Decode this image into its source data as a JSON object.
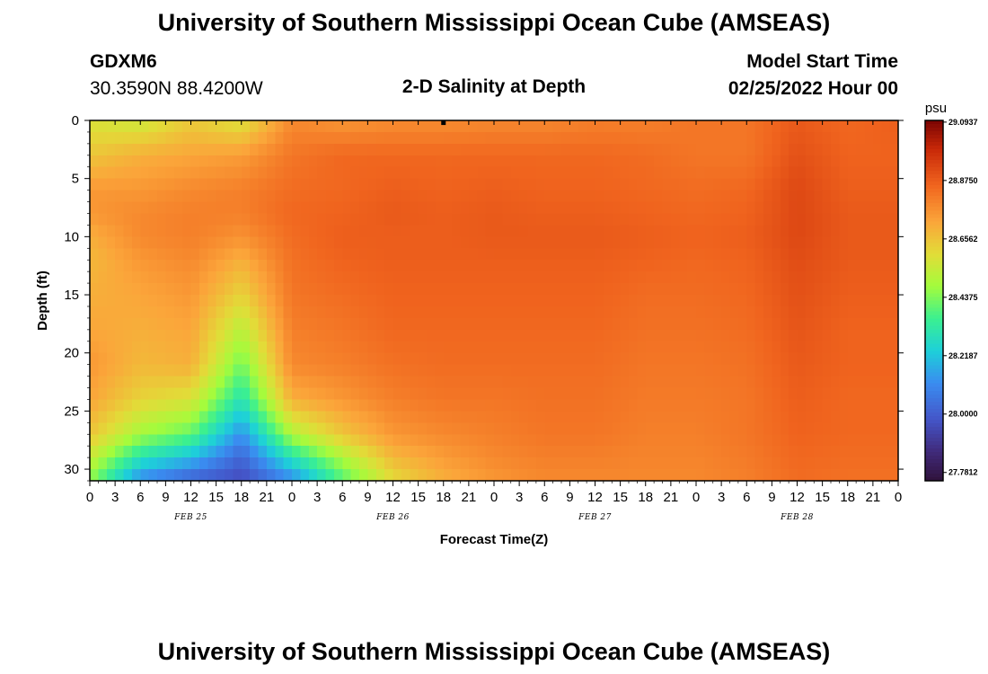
{
  "page": {
    "title_top": "University of Southern Mississippi Ocean Cube (AMSEAS)",
    "title_bottom": "University of Southern Mississippi Ocean Cube (AMSEAS)",
    "station_id": "GDXM6",
    "coords": "30.3590N  88.4200W",
    "subtitle": "2-D Salinity at Depth",
    "model_start_label": "Model Start Time",
    "model_start_value": "02/25/2022 Hour 00"
  },
  "chart_data": {
    "type": "heatmap",
    "title": "2-D Salinity at Depth",
    "xlabel": "Forecast Time(Z)",
    "ylabel": "Depth (ft)",
    "x_tick_labels": [
      "0",
      "3",
      "6",
      "9",
      "12",
      "15",
      "18",
      "21",
      "0",
      "3",
      "6",
      "9",
      "12",
      "15",
      "18",
      "21",
      "0",
      "3",
      "6",
      "9",
      "12",
      "15",
      "18",
      "21",
      "0",
      "3",
      "6",
      "9",
      "12",
      "15",
      "18",
      "21",
      "0"
    ],
    "x_hours_range": [
      0,
      96
    ],
    "date_labels": [
      {
        "label": "FEB 25",
        "hour": 12
      },
      {
        "label": "FEB 26",
        "hour": 36
      },
      {
        "label": "FEB 27",
        "hour": 60
      },
      {
        "label": "FEB 28",
        "hour": 84
      }
    ],
    "y_ticks": [
      0,
      5,
      10,
      15,
      20,
      25,
      30
    ],
    "y_tick_labels": [
      "0",
      "5",
      "10",
      "15",
      "20",
      "25",
      "30"
    ],
    "y_range": [
      0,
      31
    ],
    "colorbar": {
      "unit": "psu",
      "ticks": [
        "29.0937",
        "28.8750",
        "28.6562",
        "28.4375",
        "28.2187",
        "28.0000",
        "27.7812"
      ],
      "range": [
        27.75,
        29.1
      ]
    },
    "marker": {
      "hour": 42,
      "depth": 0.2
    },
    "hours_keyframes": [
      0,
      6,
      12,
      18,
      24,
      30,
      36,
      42,
      48,
      54,
      60,
      66,
      72,
      78,
      84,
      90,
      96
    ],
    "depth_keyframes": [
      0,
      3,
      6,
      8,
      10,
      12,
      15,
      18,
      21,
      24,
      27,
      29,
      31
    ],
    "salinity_grid": [
      [
        28.58,
        28.55,
        28.64,
        28.58,
        28.78,
        28.75,
        28.77,
        28.77,
        28.78,
        28.78,
        28.8,
        28.8,
        28.82,
        28.82,
        28.88,
        28.85,
        28.87
      ],
      [
        28.65,
        28.7,
        28.72,
        28.74,
        28.82,
        28.85,
        28.85,
        28.85,
        28.85,
        28.85,
        28.85,
        28.84,
        28.82,
        28.82,
        28.9,
        28.86,
        28.86
      ],
      [
        28.75,
        28.75,
        28.78,
        28.8,
        28.84,
        28.85,
        28.87,
        28.86,
        28.87,
        28.86,
        28.86,
        28.85,
        28.84,
        28.85,
        28.92,
        28.87,
        28.87
      ],
      [
        28.75,
        28.78,
        28.8,
        28.8,
        28.85,
        28.86,
        28.88,
        28.87,
        28.88,
        28.87,
        28.87,
        28.86,
        28.85,
        28.86,
        28.92,
        28.88,
        28.88
      ],
      [
        28.7,
        28.78,
        28.8,
        28.76,
        28.84,
        28.87,
        28.87,
        28.87,
        28.88,
        28.88,
        28.88,
        28.87,
        28.86,
        28.87,
        28.92,
        28.88,
        28.88
      ],
      [
        28.68,
        28.75,
        28.78,
        28.7,
        28.83,
        28.86,
        28.87,
        28.87,
        28.87,
        28.87,
        28.87,
        28.86,
        28.85,
        28.86,
        28.91,
        28.88,
        28.88
      ],
      [
        28.7,
        28.72,
        28.75,
        28.62,
        28.82,
        28.84,
        28.86,
        28.86,
        28.86,
        28.86,
        28.86,
        28.84,
        28.84,
        28.85,
        28.9,
        28.87,
        28.87
      ],
      [
        28.72,
        28.7,
        28.72,
        28.52,
        28.8,
        28.82,
        28.85,
        28.85,
        28.85,
        28.85,
        28.85,
        28.83,
        28.83,
        28.84,
        28.89,
        28.86,
        28.86
      ],
      [
        28.75,
        28.68,
        28.7,
        28.42,
        28.78,
        28.8,
        28.83,
        28.84,
        28.84,
        28.84,
        28.84,
        28.82,
        28.82,
        28.83,
        28.88,
        28.86,
        28.86
      ],
      [
        28.72,
        28.62,
        28.58,
        28.3,
        28.7,
        28.75,
        28.8,
        28.82,
        28.82,
        28.83,
        28.83,
        28.81,
        28.81,
        28.82,
        28.87,
        28.85,
        28.85
      ],
      [
        28.65,
        28.48,
        28.4,
        28.12,
        28.5,
        28.65,
        28.75,
        28.78,
        28.8,
        28.82,
        28.82,
        28.8,
        28.8,
        28.82,
        28.86,
        28.85,
        28.85
      ],
      [
        28.55,
        28.3,
        28.2,
        28.02,
        28.3,
        28.5,
        28.68,
        28.74,
        28.78,
        28.8,
        28.8,
        28.79,
        28.79,
        28.81,
        28.85,
        28.84,
        28.84
      ],
      [
        28.45,
        28.1,
        28.0,
        27.95,
        28.1,
        28.38,
        28.6,
        28.7,
        28.75,
        28.78,
        28.78,
        28.78,
        28.78,
        28.8,
        28.84,
        28.83,
        28.83
      ]
    ]
  }
}
